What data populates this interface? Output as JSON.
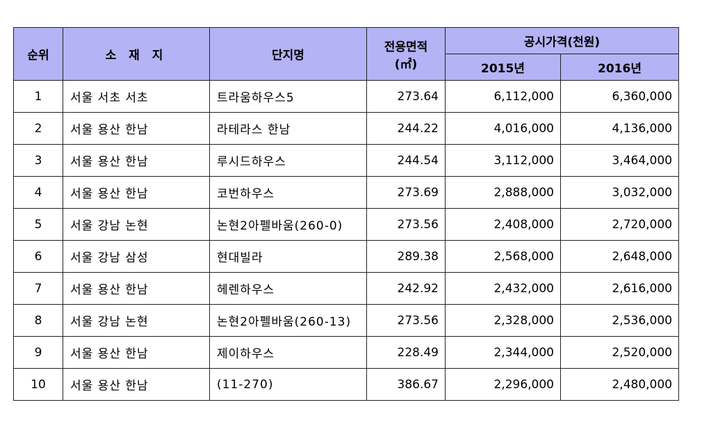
{
  "header": {
    "rank": "순위",
    "location": "소 재 지",
    "complex": "단지명",
    "area_line1": "전용면적",
    "area_line2": "(㎡)",
    "price_group": "공시가격(천원)",
    "year_2015": "2015년",
    "year_2016": "2016년"
  },
  "rows": [
    {
      "rank": "1",
      "location": "서울 서초 서초",
      "complex": "트라움하우스5",
      "area": "273.64",
      "p2015": "6,112,000",
      "p2016": "6,360,000"
    },
    {
      "rank": "2",
      "location": "서울 용산 한남",
      "complex": "라테라스 한남",
      "area": "244.22",
      "p2015": "4,016,000",
      "p2016": "4,136,000"
    },
    {
      "rank": "3",
      "location": "서울 용산 한남",
      "complex": "루시드하우스",
      "area": "244.54",
      "p2015": "3,112,000",
      "p2016": "3,464,000"
    },
    {
      "rank": "4",
      "location": "서울 용산 한남",
      "complex": "코번하우스",
      "area": "273.69",
      "p2015": "2,888,000",
      "p2016": "3,032,000"
    },
    {
      "rank": "5",
      "location": "서울 강남 논현",
      "complex": "논현2아펠바움(260-0)",
      "area": "273.56",
      "p2015": "2,408,000",
      "p2016": "2,720,000"
    },
    {
      "rank": "6",
      "location": "서울 강남 삼성",
      "complex": "현대빌라",
      "area": "289.38",
      "p2015": "2,568,000",
      "p2016": "2,648,000"
    },
    {
      "rank": "7",
      "location": "서울 용산 한남",
      "complex": "헤렌하우스",
      "area": "242.92",
      "p2015": "2,432,000",
      "p2016": "2,616,000"
    },
    {
      "rank": "8",
      "location": "서울 강남 논현",
      "complex": "논현2아펠바움(260-13)",
      "area": "273.56",
      "p2015": "2,328,000",
      "p2016": "2,536,000"
    },
    {
      "rank": "9",
      "location": "서울 용산 한남",
      "complex": "제이하우스",
      "area": "228.49",
      "p2015": "2,344,000",
      "p2016": "2,520,000"
    },
    {
      "rank": "10",
      "location": "서울 용산 한남",
      "complex": "(11-270)",
      "area": "386.67",
      "p2015": "2,296,000",
      "p2016": "2,480,000"
    }
  ]
}
